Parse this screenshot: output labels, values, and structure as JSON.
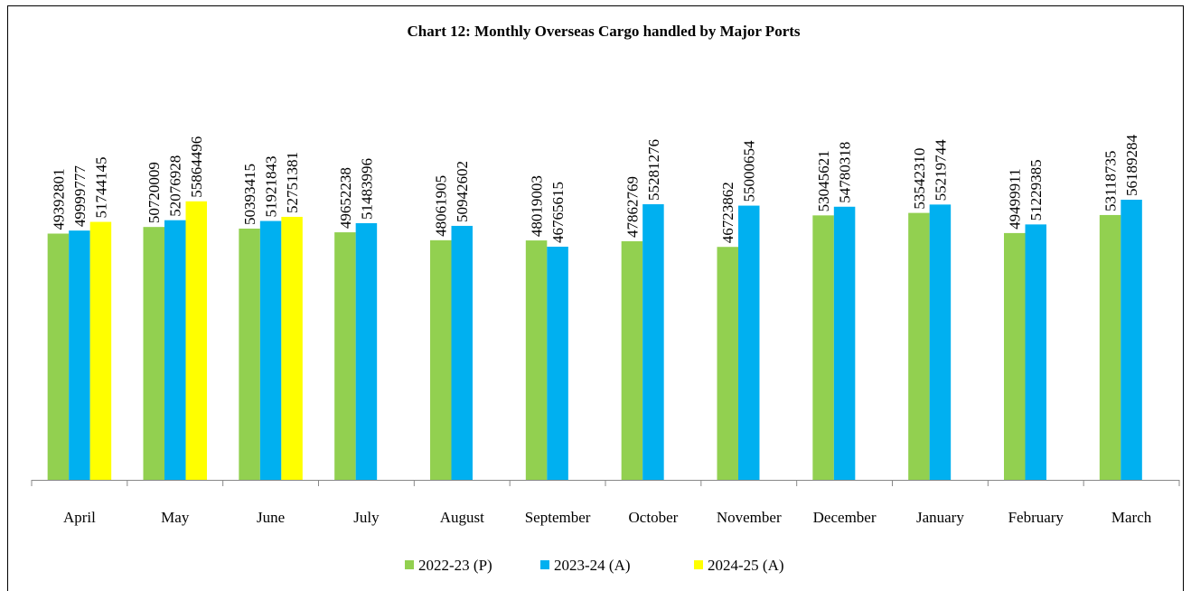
{
  "chart_data": {
    "type": "bar",
    "title": "Chart 12: Monthly Overseas Cargo handled by Major Ports",
    "categories": [
      "April",
      "May",
      "June",
      "July",
      "August",
      "September",
      "October",
      "November",
      "December",
      "January",
      "February",
      "March"
    ],
    "series": [
      {
        "name": "2022-23 (P)",
        "color": "#92d050",
        "values": [
          49392801,
          50720009,
          50393415,
          49652238,
          48061905,
          48019003,
          47862769,
          46723862,
          53045621,
          53542310,
          49499911,
          53118735
        ]
      },
      {
        "name": "2023-24 (A)",
        "color": "#00b0f0",
        "values": [
          49999777,
          52076928,
          51921843,
          51483996,
          50942602,
          46765615,
          55281276,
          55000654,
          54780318,
          55219744,
          51229385,
          56189284
        ]
      },
      {
        "name": "2024-25 (A)",
        "color": "#ffff00",
        "values": [
          51744145,
          55864496,
          52751381,
          null,
          null,
          null,
          null,
          null,
          null,
          null,
          null,
          null
        ]
      }
    ],
    "legend": "bottom"
  }
}
